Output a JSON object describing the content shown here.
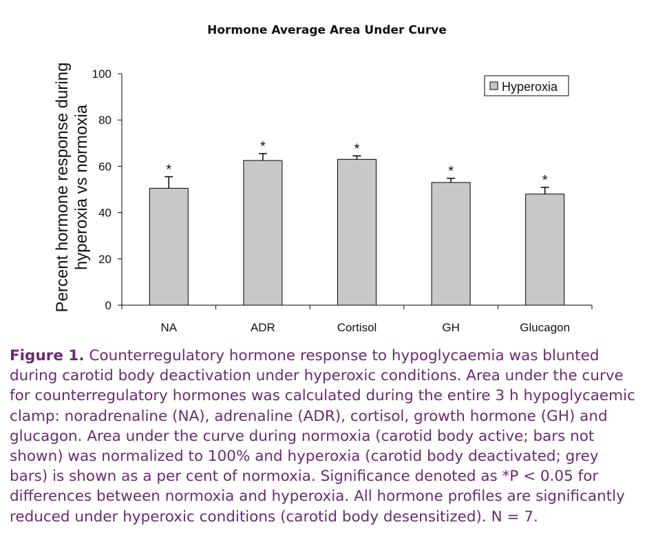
{
  "chart_data": {
    "type": "bar",
    "title": "Hormone Average Area Under Curve",
    "ylabel_line1": "Percent hormone response during",
    "ylabel_line2": "hyperoxia vs normoxia",
    "xlabel": "",
    "ylim": [
      0,
      100
    ],
    "yticks": [
      0,
      20,
      40,
      60,
      80,
      100
    ],
    "categories": [
      "NA",
      "ADR",
      "Cortisol",
      "GH",
      "Glucagon"
    ],
    "series": [
      {
        "name": "Hyperoxia",
        "values": [
          50.5,
          62.5,
          63,
          53,
          48
        ],
        "error": [
          5,
          3,
          1.5,
          1.8,
          2.9
        ],
        "color": "#c8c8c8"
      }
    ],
    "significance_marker": "*",
    "legend_position": "top-right",
    "grid": false
  },
  "caption": {
    "label": "Figure 1.",
    "text": " Counterregulatory hormone response to hypoglycaemia was blunted during carotid body deactivation under hyperoxic conditions. Area under the curve for counterregulatory hormones was calculated during the entire 3 h hypoglycaemic clamp: noradrenaline (NA), adrenaline (ADR), cortisol, growth hormone (GH) and glucagon. Area under the curve during normoxia (carotid body active; bars not shown) was normalized to 100% and hyperoxia (carotid body deactivated; grey bars) is shown as a per cent of normoxia. Significance denoted as *P < 0.05 for differences between normoxia and hyperoxia. All hormone profiles are significantly reduced under hyperoxic conditions (carotid body desensitized). N = 7."
  }
}
